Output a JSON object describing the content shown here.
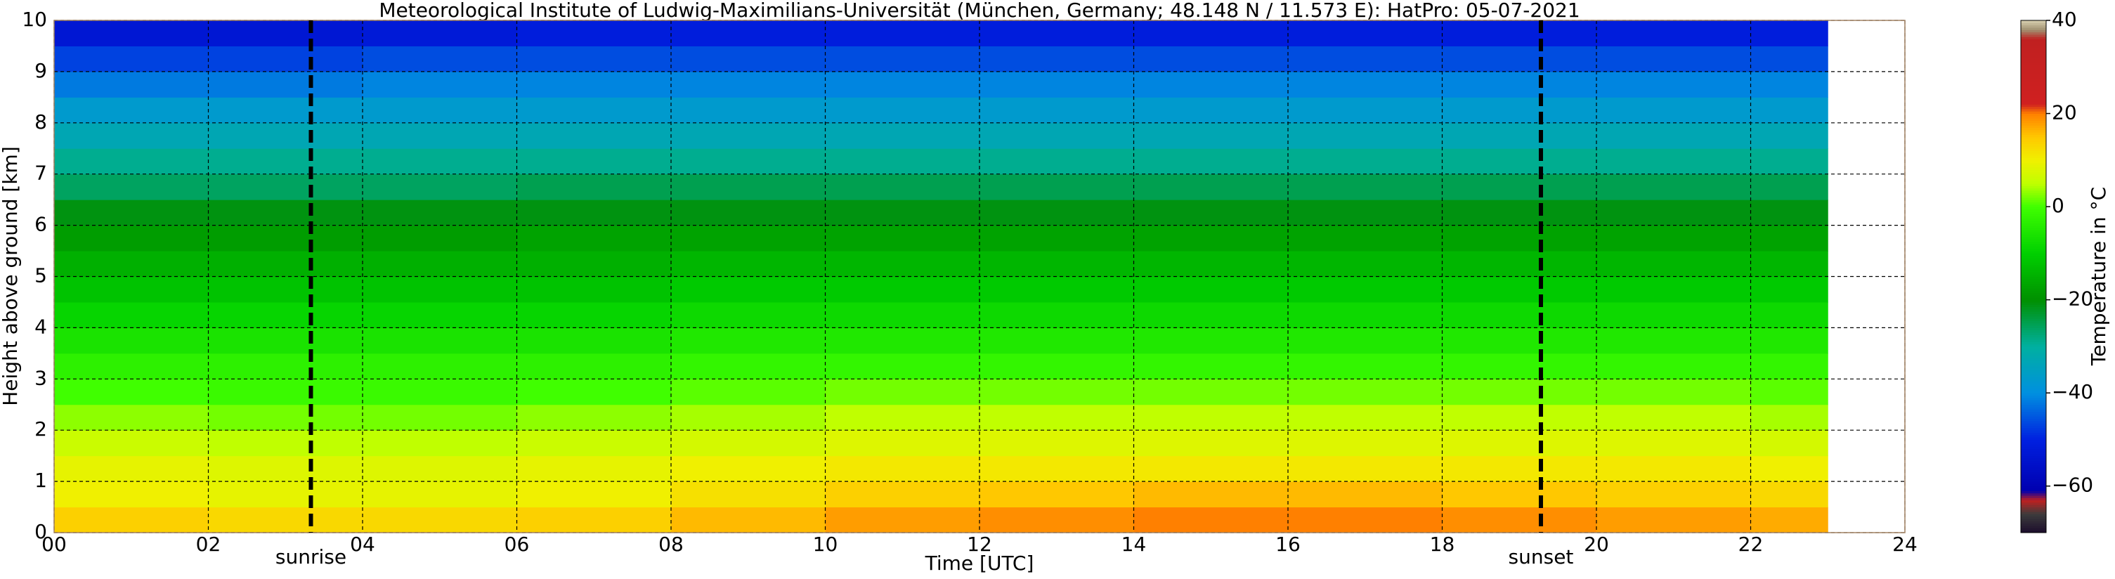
{
  "chart_data": {
    "type": "heatmap",
    "title": "Meteorological Institute of Ludwig-Maximilians-Universität (München, Germany; 48.148 N / 11.573 E):    HatPro: 05-07-2021",
    "x_label": "Time [UTC]",
    "y_label": "Height above ground [km]",
    "x_bins": [
      0,
      2,
      4,
      6,
      8,
      10,
      12,
      14,
      16,
      18,
      20,
      22,
      23
    ],
    "y_bins": [
      0,
      0.5,
      1,
      1.5,
      2,
      2.5,
      3,
      3.5,
      4,
      4.5,
      5,
      5.5,
      6,
      6.5,
      7,
      7.5,
      8,
      8.5,
      9,
      9.5,
      10
    ],
    "z": [
      [
        14,
        13,
        13,
        14,
        16,
        18,
        19,
        20,
        20,
        19,
        18,
        17
      ],
      [
        10,
        9,
        9,
        10,
        12,
        14,
        15,
        16,
        16,
        15,
        14,
        13
      ],
      [
        9,
        8,
        8,
        9,
        10,
        11,
        11,
        11,
        11,
        11,
        11,
        10
      ],
      [
        6,
        5,
        5,
        6,
        7,
        8,
        8,
        8,
        8,
        8,
        8,
        7
      ],
      [
        3,
        2,
        2,
        3,
        4,
        5,
        5,
        5,
        5,
        5,
        5,
        4
      ],
      [
        0,
        -1,
        -1,
        0,
        1,
        2,
        2,
        2,
        2,
        2,
        2,
        1
      ],
      [
        -3,
        -3,
        -3,
        -3,
        -2,
        -2,
        -2,
        -2,
        -2,
        -2,
        -2,
        -2
      ],
      [
        -6,
        -6,
        -6,
        -6,
        -5,
        -5,
        -5,
        -5,
        -5,
        -5,
        -5,
        -5
      ],
      [
        -9,
        -9,
        -9,
        -9,
        -8,
        -8,
        -8,
        -8,
        -8,
        -8,
        -8,
        -8
      ],
      [
        -12,
        -12,
        -12,
        -12,
        -11,
        -11,
        -11,
        -11,
        -11,
        -11,
        -11,
        -11
      ],
      [
        -15,
        -15,
        -15,
        -15,
        -14,
        -14,
        -14,
        -14,
        -14,
        -14,
        -14,
        -14
      ],
      [
        -18,
        -18,
        -18,
        -17,
        -17,
        -17,
        -17,
        -17,
        -17,
        -17,
        -17,
        -17
      ],
      [
        -21,
        -21,
        -21,
        -21,
        -21,
        -21,
        -21,
        -21,
        -21,
        -21,
        -21,
        -21
      ],
      [
        -26,
        -26,
        -26,
        -25,
        -25,
        -25,
        -25,
        -25,
        -25,
        -25,
        -25,
        -25
      ],
      [
        -29,
        -29,
        -29,
        -29,
        -29,
        -29,
        -29,
        -29,
        -29,
        -29,
        -29,
        -29
      ],
      [
        -33,
        -33,
        -33,
        -33,
        -33,
        -33,
        -33,
        -33,
        -33,
        -33,
        -33,
        -33
      ],
      [
        -37,
        -37,
        -37,
        -37,
        -37,
        -37,
        -37,
        -37,
        -37,
        -37,
        -37,
        -37
      ],
      [
        -42,
        -42,
        -41,
        -41,
        -41,
        -41,
        -41,
        -41,
        -41,
        -41,
        -41,
        -41
      ],
      [
        -47,
        -47,
        -46,
        -46,
        -46,
        -46,
        -46,
        -46,
        -46,
        -46,
        -46,
        -46
      ],
      [
        -53,
        -53,
        -52,
        -51,
        -51,
        -51,
        -51,
        -51,
        -51,
        -51,
        -51,
        -51
      ]
    ],
    "xlim": [
      0,
      24
    ],
    "xticks": [
      {
        "value": 0,
        "label": "00"
      },
      {
        "value": 2,
        "label": "02"
      },
      {
        "value": 4,
        "label": "04"
      },
      {
        "value": 6,
        "label": "06"
      },
      {
        "value": 8,
        "label": "08"
      },
      10,
      12,
      14,
      16,
      18,
      20,
      22,
      24
    ],
    "ylim": [
      0,
      10
    ],
    "yticks": [
      0,
      1,
      2,
      3,
      4,
      5,
      6,
      7,
      8,
      9,
      10
    ],
    "grid": true,
    "annotations": [
      {
        "x": 3.33,
        "label": "sunrise"
      },
      {
        "x": 19.28,
        "label": "sunset"
      }
    ],
    "colorscale": [
      [
        -70,
        "#1c0c2c"
      ],
      [
        -66,
        "#3c3c3c"
      ],
      [
        -63,
        "#c02020"
      ],
      [
        -61,
        "#0000b0"
      ],
      [
        -50,
        "#0020e0"
      ],
      [
        -40,
        "#0090e0"
      ],
      [
        -30,
        "#00b0a0"
      ],
      [
        -20,
        "#009000"
      ],
      [
        -10,
        "#00d000"
      ],
      [
        0,
        "#40ff00"
      ],
      [
        5,
        "#c0ff00"
      ],
      [
        10,
        "#f0f000"
      ],
      [
        15,
        "#ffc800"
      ],
      [
        20,
        "#ff8000"
      ],
      [
        22,
        "#d02020"
      ],
      [
        36,
        "#c02020"
      ],
      [
        38,
        "#a09070"
      ],
      [
        40,
        "#d8d0b0"
      ]
    ],
    "colorbar": {
      "label": "Temperature in °C",
      "lim": [
        -70,
        40
      ],
      "ticks": [
        {
          "value": -60,
          "label": "−60"
        },
        {
          "value": -40,
          "label": "−40"
        },
        {
          "value": -20,
          "label": "−20"
        },
        0,
        20,
        40
      ]
    }
  }
}
